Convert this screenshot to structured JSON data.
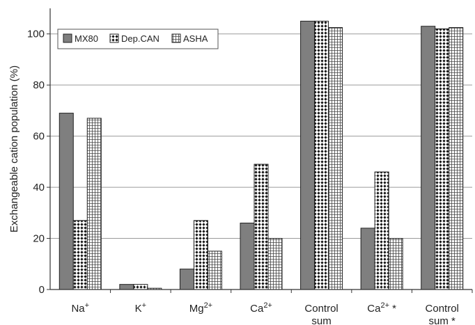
{
  "chart_data": {
    "type": "bar",
    "title": "",
    "xlabel": "",
    "ylabel": "Exchangeable cation population (%)",
    "ylim": [
      0,
      110
    ],
    "yticks": [
      0,
      20,
      40,
      60,
      80,
      100
    ],
    "grid": "horizontal",
    "legend_position": "top-left",
    "categories": [
      {
        "base": "Na",
        "sup": "+",
        "star": "",
        "line2": ""
      },
      {
        "base": "K",
        "sup": "+",
        "star": "",
        "line2": ""
      },
      {
        "base": "Mg",
        "sup": "2+",
        "star": "",
        "line2": ""
      },
      {
        "base": "Ca",
        "sup": "2+",
        "star": "",
        "line2": ""
      },
      {
        "base": "Control",
        "sup": "",
        "star": "",
        "line2": "sum"
      },
      {
        "base": "Ca",
        "sup": "2+",
        "star": " *",
        "line2": ""
      },
      {
        "base": "Control",
        "sup": "",
        "star": "",
        "line2": "sum *"
      }
    ],
    "series": [
      {
        "name": "MX80",
        "pattern": "solid-gray",
        "values": [
          69,
          2,
          8,
          26,
          105,
          24,
          103
        ]
      },
      {
        "name": "Dep.CAN",
        "pattern": "diamond-checker",
        "values": [
          27,
          2,
          27,
          49,
          105,
          46,
          102
        ]
      },
      {
        "name": "ASHA",
        "pattern": "grid",
        "values": [
          67,
          0.5,
          15,
          20,
          102.5,
          20,
          102.5
        ]
      }
    ]
  }
}
